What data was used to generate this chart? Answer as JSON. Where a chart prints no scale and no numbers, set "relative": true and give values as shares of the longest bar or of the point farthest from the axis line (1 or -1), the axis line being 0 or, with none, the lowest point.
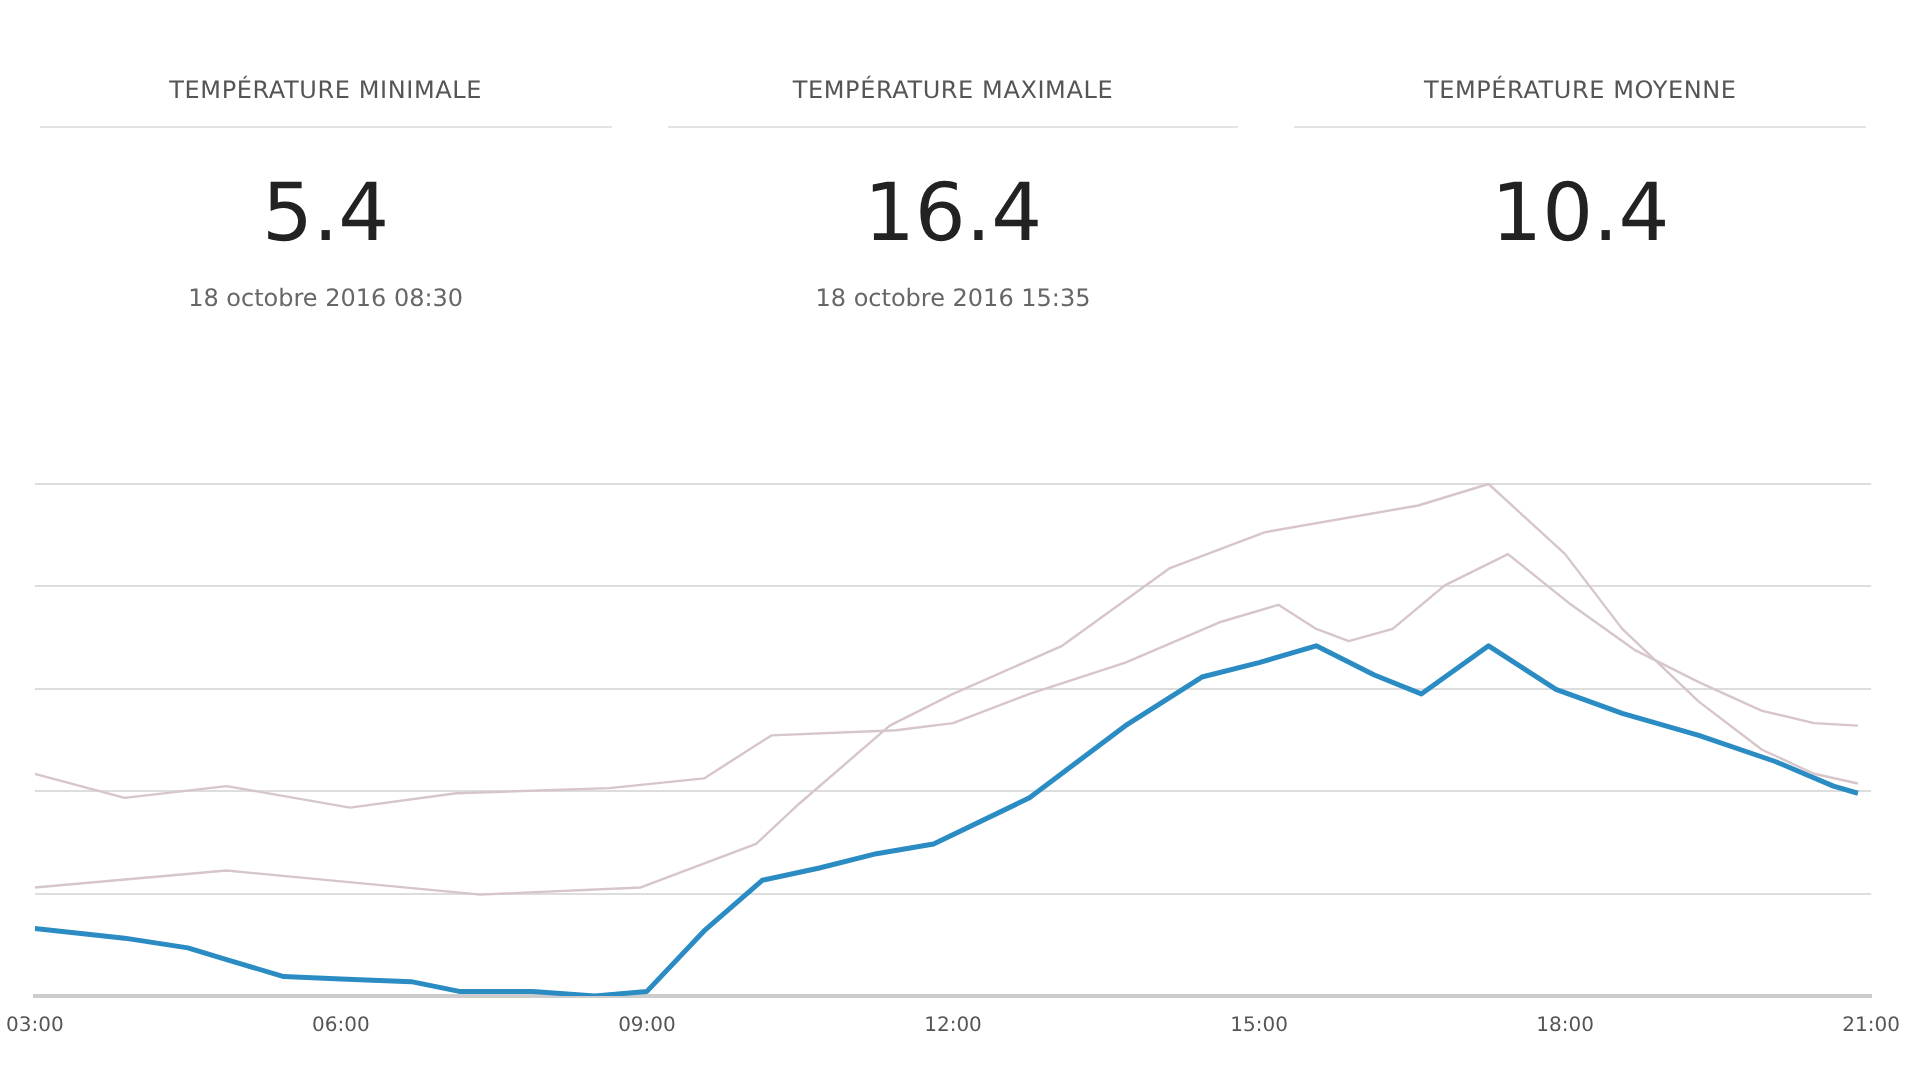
{
  "chart_data": {
    "type": "line",
    "relative": true,
    "annotations": [
      "TEMPÉRATURE MINIMALE",
      "5.4",
      "18 octobre 2016 08:30",
      "TEMPÉRATURE MAXIMALE",
      "16.4",
      "18 octobre 2016 15:35",
      "TEMPÉRATURE MOYENNE",
      "10.4"
    ],
    "xlim": [
      3,
      21
    ],
    "xticks": [
      {
        "value": 3,
        "label": "03:00"
      },
      {
        "value": 6,
        "label": "06:00"
      },
      {
        "value": 9,
        "label": "09:00"
      },
      {
        "value": 12,
        "label": "12:00"
      },
      {
        "value": 15,
        "label": "15:00"
      },
      {
        "value": 18,
        "label": "18:00"
      },
      {
        "value": 21,
        "label": "21:00"
      }
    ],
    "grid": "y",
    "legend": false,
    "marker": "none",
    "line_style": "solid",
    "tick_labels": "x",
    "series": [
      {
        "color": "#d6c6ca",
        "x": [
          3.0,
          3.88,
          4.88,
          6.09,
          7.13,
          8.63,
          9.56,
          10.22,
          11.44,
          12.0,
          12.75,
          13.69,
          14.63,
          15.19,
          15.56,
          15.88,
          16.31,
          16.82,
          17.44,
          18.06,
          18.69,
          19.31,
          19.93,
          20.44,
          20.87
        ],
        "values": [
          0.434,
          0.387,
          0.41,
          0.368,
          0.396,
          0.406,
          0.425,
          0.509,
          0.519,
          0.533,
          0.59,
          0.651,
          0.731,
          0.764,
          0.717,
          0.693,
          0.717,
          0.802,
          0.863,
          0.764,
          0.675,
          0.613,
          0.557,
          0.533,
          0.528
        ]
      },
      {
        "color": "#d6c6ca",
        "x": [
          3.0,
          4.88,
          7.37,
          8.94,
          10.07,
          10.5,
          11.38,
          12.0,
          13.07,
          14.12,
          15.06,
          16.56,
          17.25,
          18.0,
          18.56,
          19.31,
          19.93,
          20.44,
          20.87
        ],
        "values": [
          0.212,
          0.245,
          0.198,
          0.212,
          0.297,
          0.377,
          0.528,
          0.59,
          0.684,
          0.835,
          0.906,
          0.958,
          1,
          0.863,
          0.717,
          0.575,
          0.481,
          0.434,
          0.415
        ]
      },
      {
        "color": "#2b8cc4",
        "x": [
          3.0,
          3.88,
          4.5,
          4.88,
          5.44,
          6.0,
          6.69,
          7.16,
          7.88,
          8.49,
          9.0,
          9.56,
          10.13,
          10.69,
          11.25,
          11.81,
          12.75,
          13.69,
          14.44,
          15.0,
          15.56,
          16.13,
          16.59,
          17.25,
          17.91,
          18.56,
          19.31,
          20.06,
          20.63,
          20.87
        ],
        "values": [
          0.132,
          0.113,
          0.094,
          0.071,
          0.038,
          0.033,
          0.028,
          0.009,
          0.009,
          0,
          0.009,
          0.127,
          0.226,
          0.25,
          0.278,
          0.297,
          0.387,
          0.528,
          0.623,
          0.651,
          0.684,
          0.627,
          0.59,
          0.684,
          0.599,
          0.552,
          0.509,
          0.458,
          0.41,
          0.396
        ]
      }
    ]
  }
}
